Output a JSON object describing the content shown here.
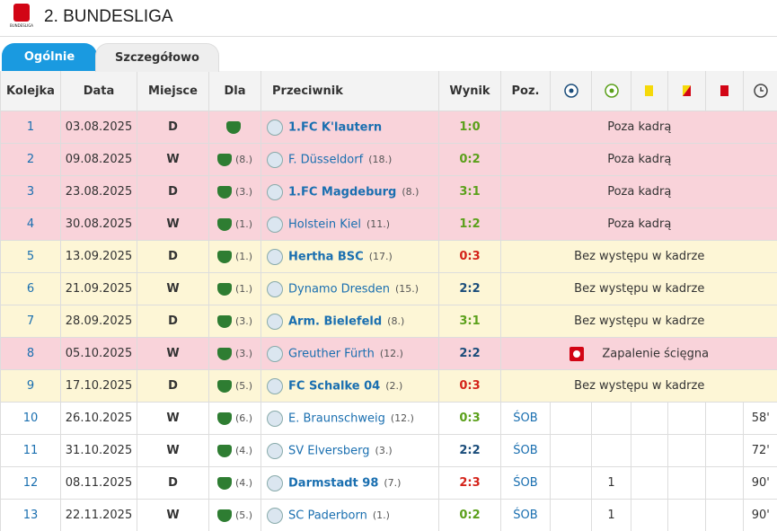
{
  "header": {
    "title": "2. BUNDESLIGA",
    "logo_caption": "BUNDESLIGA"
  },
  "tabs": [
    "Ogólnie",
    "Szczegółowo"
  ],
  "table": {
    "columns": [
      "Kolejka",
      "Data",
      "Miejsce",
      "Dla",
      "Przeciwnik",
      "Wynik",
      "Poz."
    ],
    "rows": [
      {
        "round": "1",
        "date": "03.08.2025",
        "place": "D",
        "opponent": "1.FC K'lautern",
        "opponent_bold": true,
        "result": "1:0",
        "result_color": "#5ba01b",
        "background": "#f9d3da",
        "status": "Poza kadrą"
      },
      {
        "round": "2",
        "date": "09.08.2025",
        "place": "W",
        "team_pos": "(8.)",
        "opponent": "F. Düsseldorf",
        "opponent_bold": false,
        "opponent_pos": "(18.)",
        "result": "0:2",
        "result_color": "#5ba01b",
        "background": "#f9d3da",
        "status": "Poza kadrą"
      },
      {
        "round": "3",
        "date": "23.08.2025",
        "place": "D",
        "team_pos": "(3.)",
        "opponent": "1.FC Magdeburg",
        "opponent_bold": true,
        "opponent_pos": "(8.)",
        "result": "3:1",
        "result_color": "#5ba01b",
        "background": "#f9d3da",
        "status": "Poza kadrą"
      },
      {
        "round": "4",
        "date": "30.08.2025",
        "place": "W",
        "team_pos": "(1.)",
        "opponent": "Holstein Kiel",
        "opponent_bold": false,
        "opponent_pos": "(11.)",
        "result": "1:2",
        "result_color": "#5ba01b",
        "background": "#f9d3da",
        "status": "Poza kadrą"
      },
      {
        "round": "5",
        "date": "13.09.2025",
        "place": "D",
        "team_pos": "(1.)",
        "opponent": "Hertha BSC",
        "opponent_bold": true,
        "opponent_pos": "(17.)",
        "result": "0:3",
        "result_color": "#d4231a",
        "background": "#fdf6d6",
        "status": "Bez występu w kadrze"
      },
      {
        "round": "6",
        "date": "21.09.2025",
        "place": "W",
        "team_pos": "(1.)",
        "opponent": "Dynamo Dresden",
        "opponent_bold": false,
        "opponent_pos": "(15.)",
        "result": "2:2",
        "result_color": "#1a4c7a",
        "background": "#fdf6d6",
        "status": "Bez występu w kadrze"
      },
      {
        "round": "7",
        "date": "28.09.2025",
        "place": "D",
        "team_pos": "(3.)",
        "opponent": "Arm. Bielefeld",
        "opponent_bold": true,
        "opponent_pos": "(8.)",
        "result": "3:1",
        "result_color": "#5ba01b",
        "background": "#fdf6d6",
        "status": "Bez występu w kadrze"
      },
      {
        "round": "8",
        "date": "05.10.2025",
        "place": "W",
        "team_pos": "(3.)",
        "opponent": "Greuther Fürth",
        "opponent_bold": false,
        "opponent_pos": "(12.)",
        "result": "2:2",
        "result_color": "#1a4c7a",
        "background": "#f9d3da",
        "status": "Zapalenie ścięgna",
        "injury": true
      },
      {
        "round": "9",
        "date": "17.10.2025",
        "place": "D",
        "team_pos": "(5.)",
        "opponent": "FC Schalke 04",
        "opponent_bold": true,
        "opponent_pos": "(2.)",
        "result": "0:3",
        "result_color": "#d4231a",
        "background": "#fdf6d6",
        "status": "Bez występu w kadrze"
      },
      {
        "round": "10",
        "date": "26.10.2025",
        "place": "W",
        "team_pos": "(6.)",
        "opponent": "E. Braunschweig",
        "opponent_bold": false,
        "opponent_pos": "(12.)",
        "result": "0:3",
        "result_color": "#5ba01b",
        "background": "#ffffff",
        "position": "ŚOB",
        "minutes": "58'"
      },
      {
        "round": "11",
        "date": "31.10.2025",
        "place": "W",
        "team_pos": "(4.)",
        "opponent": "SV Elversberg",
        "opponent_bold": false,
        "opponent_pos": "(3.)",
        "result": "2:2",
        "result_color": "#1a4c7a",
        "background": "#ffffff",
        "position": "ŚOB",
        "minutes": "72'"
      },
      {
        "round": "12",
        "date": "08.11.2025",
        "place": "D",
        "team_pos": "(4.)",
        "opponent": "Darmstadt 98",
        "opponent_bold": true,
        "opponent_pos": "(7.)",
        "result": "2:3",
        "result_color": "#d4231a",
        "background": "#ffffff",
        "position": "ŚOB",
        "assists": "1",
        "minutes": "90'"
      },
      {
        "round": "13",
        "date": "22.11.2025",
        "place": "W",
        "team_pos": "(5.)",
        "opponent": "SC Paderborn",
        "opponent_bold": false,
        "opponent_pos": "(1.)",
        "result": "0:2",
        "result_color": "#5ba01b",
        "background": "#ffffff",
        "position": "ŚOB",
        "assists": "1",
        "minutes": "90'"
      }
    ]
  }
}
